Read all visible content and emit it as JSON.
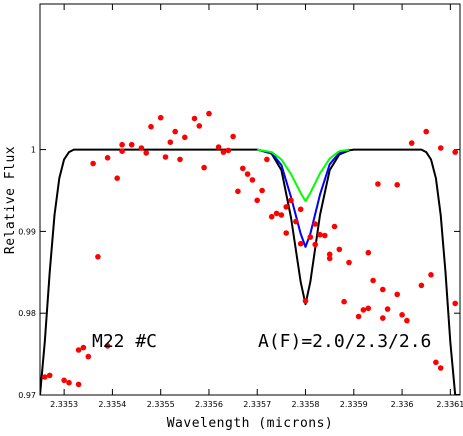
{
  "chart_data": {
    "type": "line",
    "title": "",
    "xlabel": "Wavelength (microns)",
    "ylabel": "Relative Flux",
    "xlim": [
      2.33525,
      2.33612
    ],
    "ylim": [
      0.97,
      1.0178
    ],
    "grid": false,
    "x_ticks": [
      {
        "value": 2.3353,
        "label": "2.3353"
      },
      {
        "value": 2.3354,
        "label": "2.3354"
      },
      {
        "value": 2.3355,
        "label": "2.3355"
      },
      {
        "value": 2.3356,
        "label": "2.3356"
      },
      {
        "value": 2.3357,
        "label": "2.3357"
      },
      {
        "value": 2.3358,
        "label": "2.3358"
      },
      {
        "value": 2.3359,
        "label": "2.3359"
      },
      {
        "value": 2.336,
        "label": "2.336"
      },
      {
        "value": 2.3361,
        "label": "2.3361"
      }
    ],
    "y_ticks": [
      {
        "value": 0.97,
        "label": "0.97"
      },
      {
        "value": 0.98,
        "label": "0.98"
      },
      {
        "value": 0.99,
        "label": "0.99"
      },
      {
        "value": 1.0,
        "label": "1"
      }
    ],
    "annotations": [
      "M22 #C",
      "A(F)=2.0/2.3/2.6"
    ],
    "observed_points": {
      "color": "#ff0000",
      "x": [
        2.33527,
        2.3353,
        2.33531,
        2.33533,
        2.33535,
        2.33537,
        2.33539,
        2.33542,
        2.33547,
        2.3355,
        2.33553,
        2.33557,
        2.3356,
        2.33564,
        2.33567,
        2.3357,
        2.33573,
        2.33576,
        2.33579,
        2.33582,
        2.33585,
        2.33588,
        2.33591,
        2.33593,
        2.33596,
        2.33599,
        2.33602,
        2.33605,
        2.33608,
        2.33611,
        2.33534,
        2.33541,
        2.33548,
        2.33555,
        2.33562,
        2.33569,
        2.33576,
        2.33582,
        2.33589,
        2.33596,
        2.33604,
        2.33611,
        2.33546,
        2.33559,
        2.33566,
        2.33574,
        2.33581,
        2.33587,
        2.33594,
        2.33601,
        2.33608,
        2.33552,
        2.33563,
        2.33571,
        2.33578,
        2.33585,
        2.33592,
        2.33599,
        2.33606,
        2.33613,
        2.33536,
        2.33544,
        2.33551,
        2.33558,
        2.33565,
        2.33572,
        2.33579,
        2.33586,
        2.33593,
        2.336,
        2.33607,
        2.33533,
        2.33575,
        2.33568,
        2.33554,
        2.33583,
        2.33597,
        2.33539,
        2.33584,
        2.33542,
        2.33595,
        2.33577,
        2.33526,
        2.3358
      ],
      "y": [
        0.9724,
        0.9718,
        0.9715,
        0.9713,
        0.9747,
        0.9869,
        0.999,
        0.9998,
        0.9996,
        1.0039,
        1.0022,
        1.0038,
        1.0044,
        0.9999,
        0.9977,
        0.9938,
        0.9918,
        0.9898,
        0.9885,
        0.9884,
        0.9867,
        0.9814,
        0.9796,
        0.9806,
        0.9794,
        0.9957,
        1.0008,
        1.0022,
        1.0002,
        0.9997,
        0.9758,
        0.9965,
        1.0028,
        1.0015,
        1.0003,
        0.9963,
        0.993,
        0.9909,
        0.9862,
        0.9829,
        0.9834,
        0.9812,
        1.0002,
        0.9978,
        0.9949,
        0.9922,
        0.9893,
        0.9878,
        0.984,
        0.9791,
        0.9733,
        1.0009,
        0.9997,
        0.995,
        0.9912,
        0.9872,
        0.9804,
        0.9823,
        0.9847,
        0.9898,
        0.9983,
        1.0006,
        0.9991,
        1.0029,
        1.0016,
        0.9988,
        0.9927,
        0.9906,
        0.9874,
        0.9798,
        0.974,
        0.9755,
        0.992,
        0.997,
        0.9988,
        0.9896,
        0.9805,
        0.976,
        0.9895,
        1.0006,
        0.9958,
        0.9938,
        0.9722,
        0.9815
      ]
    },
    "series": [
      {
        "color": "#000000",
        "x": [
          2.33525,
          2.33526,
          2.33527,
          2.33528,
          2.33529,
          2.3353,
          2.33531,
          2.33532,
          2.33533,
          2.33534,
          2.33536,
          2.3354,
          2.3355,
          2.3356,
          2.3357,
          2.33573,
          2.33575,
          2.33577,
          2.33579,
          2.3358,
          2.33581,
          2.33583,
          2.33585,
          2.33587,
          2.33589,
          2.3359,
          2.33595,
          2.336,
          2.33604,
          2.33605,
          2.33606,
          2.33607,
          2.33608,
          2.33609,
          2.3361,
          2.33611,
          2.33612
        ],
        "y": [
          0.97,
          0.9765,
          0.985,
          0.992,
          0.9965,
          0.9988,
          0.9997,
          1.0,
          1.0,
          1.0,
          1.0,
          1.0,
          1.0,
          1.0,
          1.0,
          0.9995,
          0.9975,
          0.9917,
          0.9838,
          0.9811,
          0.9838,
          0.992,
          0.9975,
          0.9994,
          0.9999,
          1.0,
          1.0,
          1.0,
          1.0,
          0.9997,
          0.9988,
          0.9965,
          0.992,
          0.985,
          0.9765,
          0.97,
          0.97
        ]
      },
      {
        "color": "#0000ff",
        "x": [
          2.3357,
          2.33573,
          2.33575,
          2.33577,
          2.33579,
          2.3358,
          2.33581,
          2.33583,
          2.33585,
          2.33587,
          2.33589
        ],
        "y": [
          1.0,
          0.9996,
          0.9981,
          0.9942,
          0.9897,
          0.9881,
          0.9897,
          0.9945,
          0.9982,
          0.9996,
          1.0
        ]
      },
      {
        "color": "#00ff00",
        "x": [
          2.3357,
          2.33573,
          2.33575,
          2.33577,
          2.33579,
          2.3358,
          2.33581,
          2.33583,
          2.33585,
          2.33587,
          2.33589
        ],
        "y": [
          1.0,
          0.9997,
          0.9988,
          0.997,
          0.9947,
          0.9937,
          0.9947,
          0.9971,
          0.9989,
          0.9998,
          1.0
        ]
      }
    ]
  }
}
